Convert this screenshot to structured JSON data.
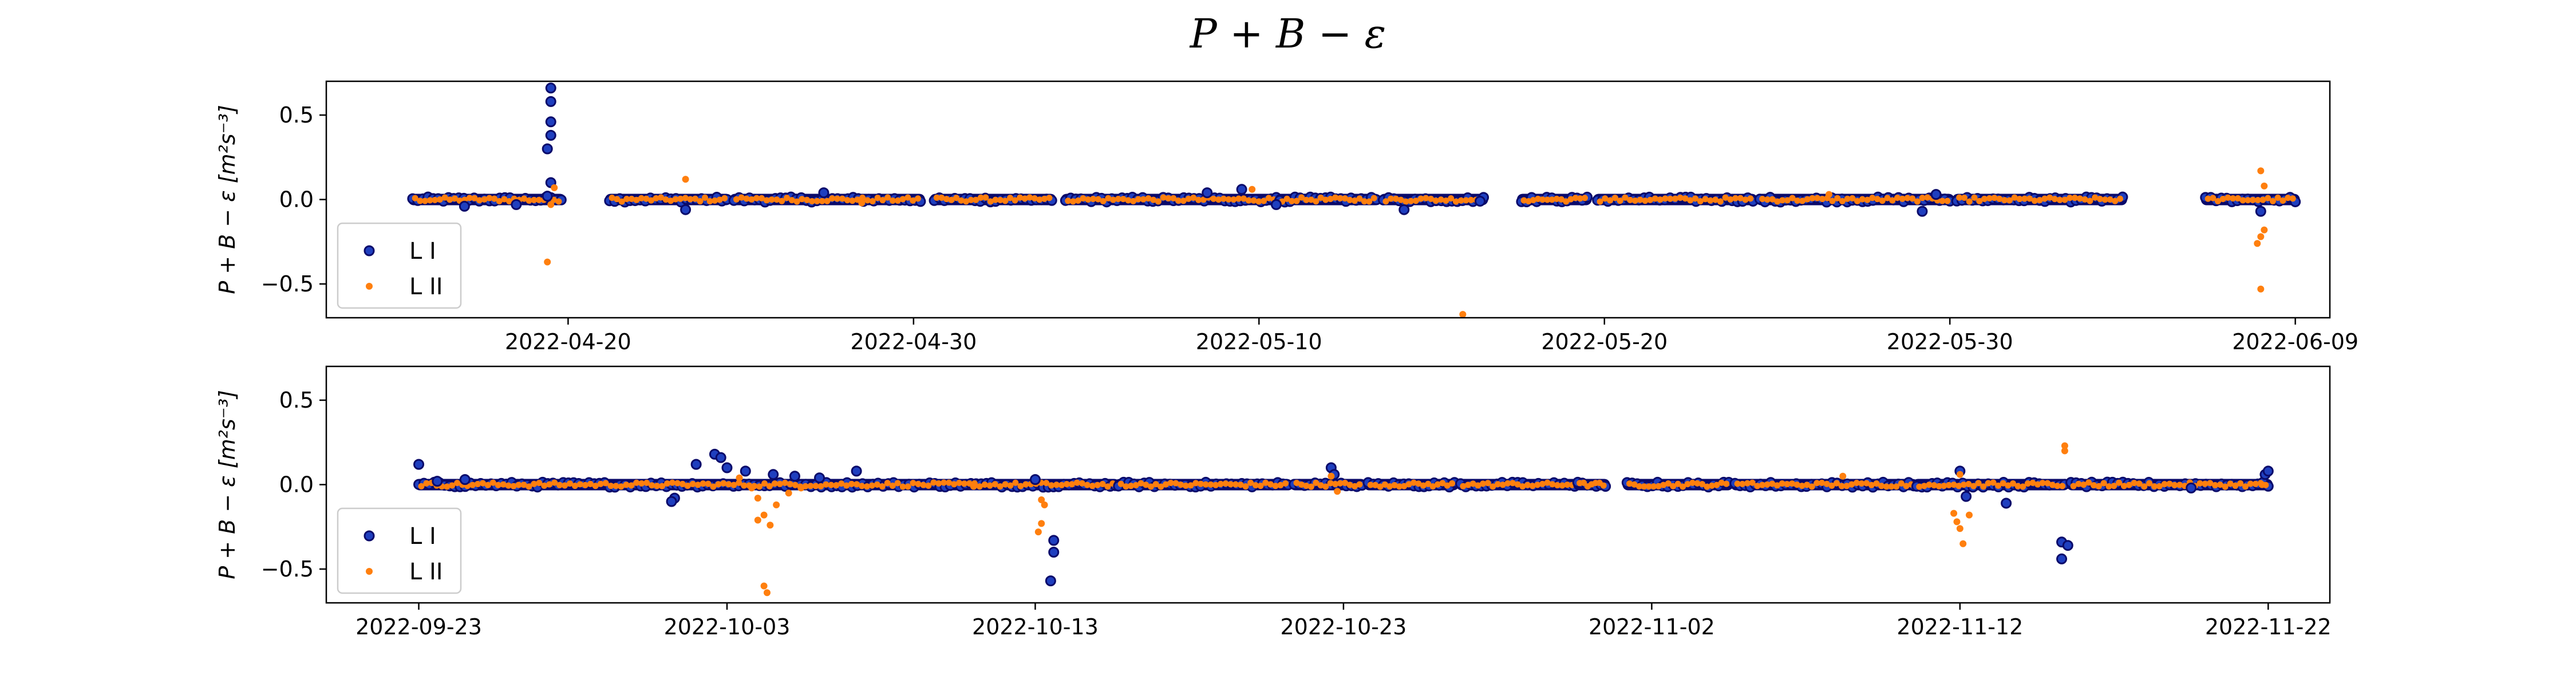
{
  "figure_title": "P + B − ε",
  "colors": {
    "L I": "#1f3fbf",
    "L I edge": "#0a0a6a",
    "L II": "#ff7f0e"
  },
  "chart_data": [
    {
      "type": "scatter",
      "ylabel": "P + B − ε [m²s⁻³]",
      "ylim": [
        -0.7,
        0.7
      ],
      "yticks": [
        0.5,
        0.0,
        -0.5
      ],
      "ytick_labels": [
        "0.5",
        "0.0",
        "−0.5"
      ],
      "xlim": [
        "2022-04-13",
        "2022-06-10"
      ],
      "xticks": [
        "2022-04-20",
        "2022-04-30",
        "2022-05-10",
        "2022-05-20",
        "2022-05-30",
        "2022-06-09"
      ],
      "legend": {
        "position": "lower-left",
        "entries": [
          "L I",
          "L II"
        ]
      },
      "segments": [
        [
          "2022-04-15.5",
          "2022-04-19.8"
        ],
        [
          "2022-04-21.2",
          "2022-04-24.6"
        ],
        [
          "2022-04-24.8",
          "2022-04-30.2"
        ],
        [
          "2022-04-30.6",
          "2022-05-04.0"
        ],
        [
          "2022-05-04.4",
          "2022-05-10.5"
        ],
        [
          "2022-05-10.6",
          "2022-05-13.4"
        ],
        [
          "2022-05-13.6",
          "2022-05-16.5"
        ],
        [
          "2022-05-17.6",
          "2022-05-19.5"
        ],
        [
          "2022-05-19.8",
          "2022-05-24.3"
        ],
        [
          "2022-05-24.5",
          "2022-05-30.0"
        ],
        [
          "2022-05-30.2",
          "2022-06-04.0"
        ],
        [
          "2022-06-06.4",
          "2022-06-09.0"
        ]
      ],
      "series": [
        {
          "name": "L I",
          "points": [
            [
              "2022-04-19.5",
              0.66
            ],
            [
              "2022-04-19.5",
              0.58
            ],
            [
              "2022-04-19.5",
              0.46
            ],
            [
              "2022-04-19.5",
              0.38
            ],
            [
              "2022-04-19.4",
              0.3
            ],
            [
              "2022-04-19.5",
              0.1
            ],
            [
              "2022-04-19.4",
              0.02
            ],
            [
              "2022-04-23.4",
              -0.06
            ],
            [
              "2022-04-17.0",
              -0.04
            ],
            [
              "2022-04-18.5",
              -0.03
            ],
            [
              "2022-04-27.4",
              0.04
            ],
            [
              "2022-05-09.5",
              0.06
            ],
            [
              "2022-05-08.5",
              0.04
            ],
            [
              "2022-05-10.5",
              -0.03
            ],
            [
              "2022-05-14.2",
              -0.06
            ],
            [
              "2022-05-16.4",
              -0.01
            ],
            [
              "2022-05-29.2",
              -0.07
            ],
            [
              "2022-05-29.6",
              0.03
            ],
            [
              "2022-06-08.0",
              -0.07
            ]
          ]
        },
        {
          "name": "L II",
          "points": [
            [
              "2022-04-19.4",
              -0.37
            ],
            [
              "2022-04-19.5",
              -0.03
            ],
            [
              "2022-04-19.6",
              0.07
            ],
            [
              "2022-04-23.4",
              0.12
            ],
            [
              "2022-05-15.9",
              -0.68
            ],
            [
              "2022-05-09.8",
              0.06
            ],
            [
              "2022-06-08.0",
              0.17
            ],
            [
              "2022-06-08.1",
              -0.18
            ],
            [
              "2022-06-08.0",
              -0.22
            ],
            [
              "2022-06-07.9",
              -0.26
            ],
            [
              "2022-06-08.0",
              -0.53
            ],
            [
              "2022-06-08.1",
              0.08
            ],
            [
              "2022-05-26.5",
              0.03
            ],
            [
              "2022-04-28.5",
              -0.02
            ]
          ]
        }
      ]
    },
    {
      "type": "scatter",
      "ylabel": "P + B − ε [m²s⁻³]",
      "ylim": [
        -0.7,
        0.7
      ],
      "yticks": [
        0.5,
        0.0,
        -0.5
      ],
      "ytick_labels": [
        "0.5",
        "0.0",
        "−0.5"
      ],
      "xlim": [
        "2022-09-20",
        "2022-11-24"
      ],
      "xticks": [
        "2022-09-23",
        "2022-10-03",
        "2022-10-13",
        "2022-10-23",
        "2022-11-02",
        "2022-11-12",
        "2022-11-22"
      ],
      "legend": {
        "position": "lower-left",
        "entries": [
          "L I",
          "L II"
        ]
      },
      "segments": [
        [
          "2022-09-23.0",
          "2022-10-15.6"
        ],
        [
          "2022-10-15.7",
          "2022-10-21.2"
        ],
        [
          "2022-10-21.4",
          "2022-10-23.6"
        ],
        [
          "2022-10-23.8",
          "2022-10-26.6"
        ],
        [
          "2022-10-26.8",
          "2022-10-30.5"
        ],
        [
          "2022-10-30.6",
          "2022-10-31.5"
        ],
        [
          "2022-11-01.2",
          "2022-11-04.5"
        ],
        [
          "2022-11-04.7",
          "2022-11-10.5"
        ],
        [
          "2022-11-10.6",
          "2022-11-15.4"
        ],
        [
          "2022-11-15.6",
          "2022-11-22.0"
        ]
      ],
      "series": [
        {
          "name": "L I",
          "points": [
            [
              "2022-09-23.0",
              0.12
            ],
            [
              "2022-09-23.6",
              0.02
            ],
            [
              "2022-09-24.5",
              0.03
            ],
            [
              "2022-10-01.3",
              -0.08
            ],
            [
              "2022-10-01.2",
              -0.1
            ],
            [
              "2022-10-02.0",
              0.12
            ],
            [
              "2022-10-02.6",
              0.18
            ],
            [
              "2022-10-02.8",
              0.16
            ],
            [
              "2022-10-03.0",
              0.1
            ],
            [
              "2022-10-03.6",
              0.08
            ],
            [
              "2022-10-04.5",
              0.06
            ],
            [
              "2022-10-05.2",
              0.05
            ],
            [
              "2022-10-06.0",
              0.04
            ],
            [
              "2022-10-07.2",
              0.08
            ],
            [
              "2022-10-13.6",
              -0.33
            ],
            [
              "2022-10-13.6",
              -0.4
            ],
            [
              "2022-10-13.5",
              -0.57
            ],
            [
              "2022-10-13.0",
              0.03
            ],
            [
              "2022-10-22.6",
              0.1
            ],
            [
              "2022-10-22.7",
              0.06
            ],
            [
              "2022-11-12.0",
              0.08
            ],
            [
              "2022-11-12.2",
              -0.07
            ],
            [
              "2022-11-13.5",
              -0.11
            ],
            [
              "2022-11-15.3",
              -0.34
            ],
            [
              "2022-11-15.5",
              -0.36
            ],
            [
              "2022-11-15.3",
              -0.44
            ],
            [
              "2022-11-21.9",
              0.06
            ],
            [
              "2022-11-22.0",
              0.08
            ],
            [
              "2022-11-19.5",
              -0.02
            ]
          ]
        },
        {
          "name": "L II",
          "points": [
            [
              "2022-10-03.4",
              0.04
            ],
            [
              "2022-10-03.8",
              -0.02
            ],
            [
              "2022-10-04.0",
              -0.08
            ],
            [
              "2022-10-04.2",
              -0.18
            ],
            [
              "2022-10-04.0",
              -0.21
            ],
            [
              "2022-10-04.4",
              -0.24
            ],
            [
              "2022-10-04.6",
              -0.12
            ],
            [
              "2022-10-04.2",
              -0.6
            ],
            [
              "2022-10-04.3",
              -0.64
            ],
            [
              "2022-10-05.0",
              -0.05
            ],
            [
              "2022-10-05.4",
              -0.02
            ],
            [
              "2022-10-13.2",
              -0.09
            ],
            [
              "2022-10-13.3",
              -0.12
            ],
            [
              "2022-10-13.2",
              -0.23
            ],
            [
              "2022-10-13.1",
              -0.28
            ],
            [
              "2022-10-22.8",
              -0.04
            ],
            [
              "2022-10-22.6",
              0.05
            ],
            [
              "2022-11-08.2",
              0.05
            ],
            [
              "2022-11-11.8",
              -0.17
            ],
            [
              "2022-11-11.9",
              -0.22
            ],
            [
              "2022-11-12.0",
              -0.26
            ],
            [
              "2022-11-12.1",
              -0.35
            ],
            [
              "2022-11-12.3",
              -0.18
            ],
            [
              "2022-11-15.4",
              0.2
            ],
            [
              "2022-11-15.4",
              0.23
            ],
            [
              "2022-11-12.0",
              0.06
            ],
            [
              "2022-11-21.8",
              0.0
            ],
            [
              "2022-10-11.0",
              -0.01
            ]
          ]
        }
      ]
    }
  ]
}
